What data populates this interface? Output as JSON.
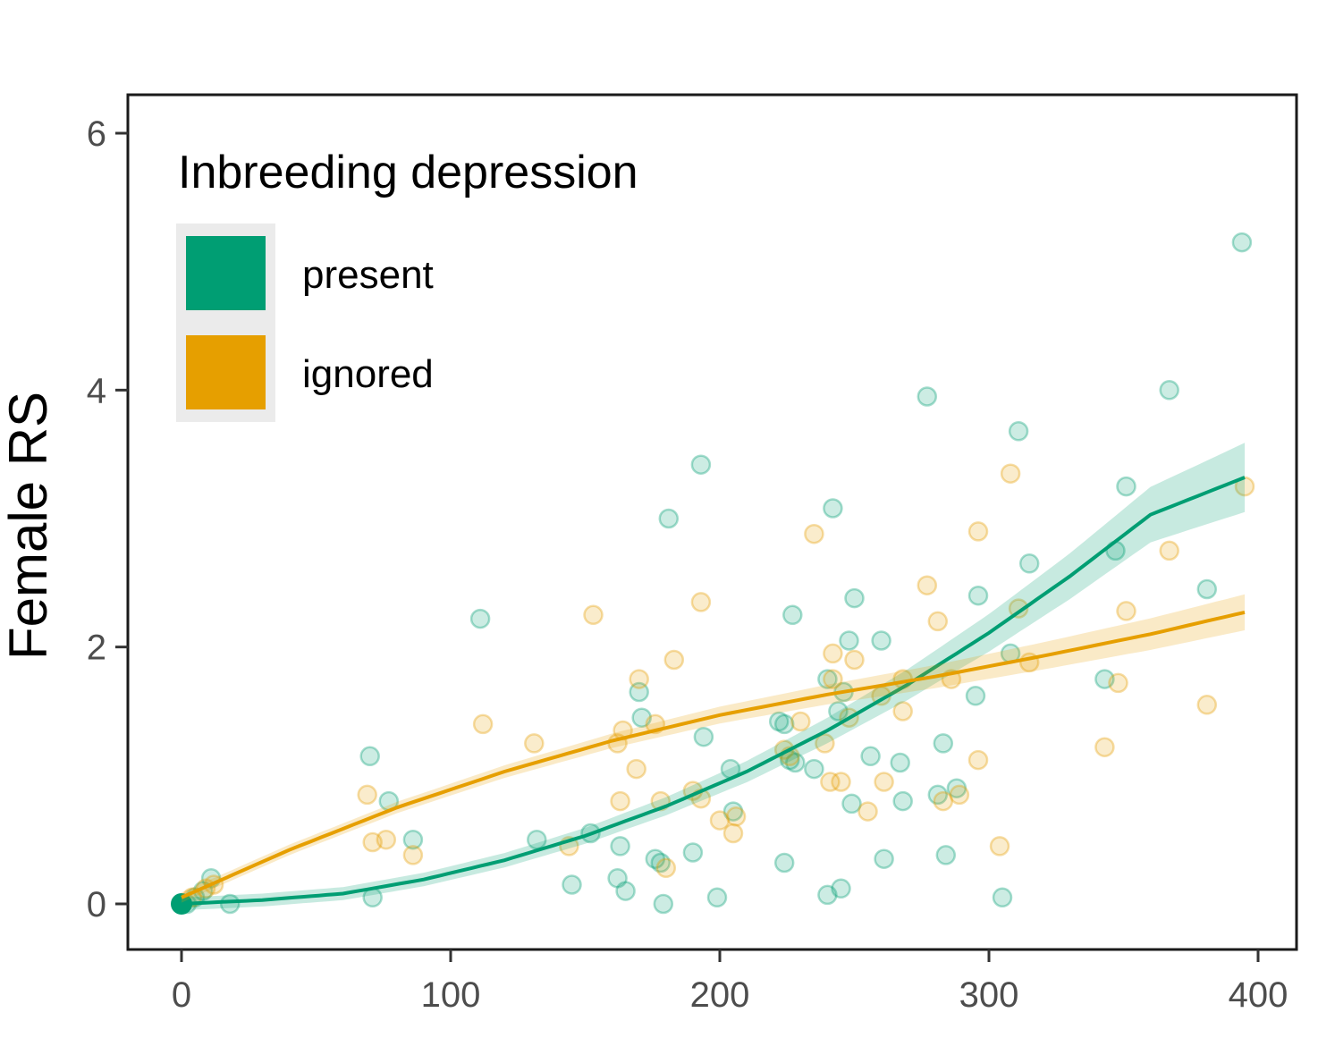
{
  "chart_data": {
    "type": "scatter",
    "title": "",
    "xlabel": "",
    "ylabel": "Female RS",
    "xlim": [
      -20,
      415
    ],
    "ylim": [
      -0.35,
      6.3
    ],
    "x_ticks": [
      0,
      100,
      200,
      300,
      400
    ],
    "x_tick_labels": [
      "0",
      "100",
      "200",
      "300",
      "400"
    ],
    "y_ticks": [
      0,
      2,
      4,
      6
    ],
    "y_tick_labels": [
      "0",
      "2",
      "4",
      "6"
    ],
    "grid": false,
    "legend": {
      "title": "Inbreeding depression",
      "position": "top-left",
      "entries": [
        {
          "label": "present",
          "color": "#009E73"
        },
        {
          "label": "ignored",
          "color": "#E69F00"
        }
      ]
    },
    "series": [
      {
        "name": "present",
        "color": "#009E73",
        "points": [
          [
            0,
            0
          ],
          [
            2,
            0
          ],
          [
            5,
            0.05
          ],
          [
            8,
            0.1
          ],
          [
            11,
            0.2
          ],
          [
            18,
            0
          ],
          [
            70,
            1.15
          ],
          [
            71,
            0.05
          ],
          [
            77,
            0.8
          ],
          [
            86,
            0.5
          ],
          [
            111,
            2.22
          ],
          [
            132,
            0.5
          ],
          [
            145,
            0.15
          ],
          [
            152,
            0.55
          ],
          [
            162,
            0.2
          ],
          [
            163,
            0.45
          ],
          [
            165,
            0.1
          ],
          [
            170,
            1.65
          ],
          [
            171,
            1.45
          ],
          [
            176,
            0.35
          ],
          [
            178,
            0.32
          ],
          [
            179,
            0
          ],
          [
            181,
            3.0
          ],
          [
            190,
            0.4
          ],
          [
            193,
            3.42
          ],
          [
            194,
            1.3
          ],
          [
            199,
            0.05
          ],
          [
            204,
            1.05
          ],
          [
            205,
            0.72
          ],
          [
            222,
            1.42
          ],
          [
            224,
            1.4
          ],
          [
            224,
            0.32
          ],
          [
            226,
            1.12
          ],
          [
            227,
            2.25
          ],
          [
            228,
            1.1
          ],
          [
            235,
            1.05
          ],
          [
            240,
            1.75
          ],
          [
            240,
            0.07
          ],
          [
            242,
            3.08
          ],
          [
            244,
            1.5
          ],
          [
            245,
            0.12
          ],
          [
            246,
            1.65
          ],
          [
            248,
            2.05
          ],
          [
            249,
            0.78
          ],
          [
            250,
            2.38
          ],
          [
            256,
            1.15
          ],
          [
            260,
            2.05
          ],
          [
            261,
            0.35
          ],
          [
            267,
            1.1
          ],
          [
            268,
            0.8
          ],
          [
            277,
            3.95
          ],
          [
            281,
            0.85
          ],
          [
            283,
            1.25
          ],
          [
            284,
            0.38
          ],
          [
            288,
            0.9
          ],
          [
            295,
            1.62
          ],
          [
            296,
            2.4
          ],
          [
            305,
            0.05
          ],
          [
            308,
            1.95
          ],
          [
            311,
            3.68
          ],
          [
            315,
            2.65
          ],
          [
            343,
            1.75
          ],
          [
            347,
            2.75
          ],
          [
            351,
            3.25
          ],
          [
            367,
            4.0
          ],
          [
            381,
            2.45
          ],
          [
            394,
            5.15
          ]
        ],
        "fit": [
          [
            0,
            0.0
          ],
          [
            30,
            0.03
          ],
          [
            60,
            0.08
          ],
          [
            90,
            0.19
          ],
          [
            120,
            0.34
          ],
          [
            150,
            0.53
          ],
          [
            180,
            0.76
          ],
          [
            210,
            1.03
          ],
          [
            240,
            1.35
          ],
          [
            270,
            1.71
          ],
          [
            300,
            2.11
          ],
          [
            330,
            2.55
          ],
          [
            360,
            3.03
          ],
          [
            395,
            3.32
          ]
        ]
      },
      {
        "name": "ignored",
        "color": "#E69F00",
        "points": [
          [
            0,
            0
          ],
          [
            4,
            0.05
          ],
          [
            9,
            0.12
          ],
          [
            12,
            0.15
          ],
          [
            69,
            0.85
          ],
          [
            71,
            0.48
          ],
          [
            76,
            0.5
          ],
          [
            86,
            0.38
          ],
          [
            112,
            1.4
          ],
          [
            131,
            1.25
          ],
          [
            144,
            0.45
          ],
          [
            153,
            2.25
          ],
          [
            162,
            1.25
          ],
          [
            163,
            0.8
          ],
          [
            164,
            1.35
          ],
          [
            169,
            1.05
          ],
          [
            170,
            1.75
          ],
          [
            176,
            1.4
          ],
          [
            178,
            0.8
          ],
          [
            180,
            0.28
          ],
          [
            183,
            1.9
          ],
          [
            193,
            2.35
          ],
          [
            190,
            0.88
          ],
          [
            193,
            0.82
          ],
          [
            200,
            0.65
          ],
          [
            205,
            0.55
          ],
          [
            206,
            0.68
          ],
          [
            224,
            1.2
          ],
          [
            226,
            1.15
          ],
          [
            230,
            1.42
          ],
          [
            235,
            2.88
          ],
          [
            239,
            1.25
          ],
          [
            241,
            0.95
          ],
          [
            242,
            1.95
          ],
          [
            242,
            1.75
          ],
          [
            245,
            0.95
          ],
          [
            248,
            1.45
          ],
          [
            250,
            1.9
          ],
          [
            255,
            0.72
          ],
          [
            260,
            1.62
          ],
          [
            261,
            0.95
          ],
          [
            268,
            1.75
          ],
          [
            268,
            1.5
          ],
          [
            277,
            2.48
          ],
          [
            281,
            2.2
          ],
          [
            283,
            0.8
          ],
          [
            286,
            1.75
          ],
          [
            289,
            0.85
          ],
          [
            296,
            1.12
          ],
          [
            296,
            2.9
          ],
          [
            304,
            0.45
          ],
          [
            308,
            3.35
          ],
          [
            311,
            2.3
          ],
          [
            315,
            1.88
          ],
          [
            343,
            1.22
          ],
          [
            348,
            1.72
          ],
          [
            351,
            2.28
          ],
          [
            367,
            2.75
          ],
          [
            381,
            1.55
          ],
          [
            395,
            3.25
          ]
        ],
        "fit": [
          [
            0,
            0.05
          ],
          [
            40,
            0.42
          ],
          [
            80,
            0.75
          ],
          [
            120,
            1.03
          ],
          [
            160,
            1.27
          ],
          [
            200,
            1.47
          ],
          [
            240,
            1.63
          ],
          [
            280,
            1.77
          ],
          [
            320,
            1.93
          ],
          [
            360,
            2.1
          ],
          [
            395,
            2.27
          ]
        ]
      }
    ]
  }
}
